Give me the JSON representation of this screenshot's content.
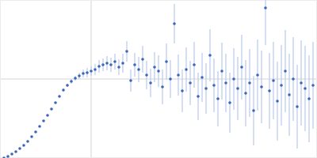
{
  "chart_data": {
    "type": "scatter",
    "x": [
      5,
      10,
      15,
      20,
      25,
      30,
      35,
      40,
      45,
      50,
      55,
      60,
      65,
      70,
      75,
      80,
      85,
      90,
      95,
      100,
      105,
      110,
      115,
      120,
      125,
      130,
      135,
      140,
      145,
      150,
      155,
      160,
      165,
      170,
      175,
      180,
      185,
      190,
      195,
      200,
      205,
      210,
      215,
      220,
      225,
      230,
      235,
      240,
      245,
      250,
      255,
      260,
      265,
      270,
      275,
      280,
      285,
      290,
      295,
      300,
      305,
      310,
      315,
      320,
      325,
      330,
      335,
      340,
      345,
      350,
      355,
      360,
      365,
      370,
      375,
      380,
      385,
      390,
      395
    ],
    "values": [
      0,
      2,
      5,
      8,
      12,
      16,
      21,
      27,
      33,
      40,
      47,
      54,
      62,
      70,
      78,
      86,
      92,
      97,
      101,
      104,
      107,
      108,
      110,
      112,
      116,
      118,
      120,
      118,
      122,
      115,
      120,
      135,
      98,
      118,
      112,
      125,
      105,
      95,
      115,
      110,
      90,
      122,
      100,
      170,
      105,
      85,
      112,
      95,
      118,
      78,
      102,
      88,
      130,
      92,
      75,
      110,
      95,
      70,
      100,
      88,
      115,
      82,
      95,
      60,
      105,
      90,
      190,
      85,
      98,
      72,
      92,
      110,
      80,
      100,
      65,
      95,
      88,
      75,
      92
    ],
    "errors": [
      0.5,
      0.5,
      0.5,
      0.5,
      0.5,
      0.5,
      0.5,
      0.5,
      0.5,
      0.5,
      0.5,
      0.5,
      0.5,
      0.5,
      0.5,
      2,
      2,
      3,
      3,
      4,
      5,
      6,
      6,
      7,
      8,
      8,
      9,
      9,
      10,
      10,
      12,
      13,
      14,
      15,
      16,
      17,
      18,
      18,
      19,
      20,
      22,
      23,
      24,
      25,
      26,
      27,
      28,
      28,
      29,
      30,
      31,
      32,
      33,
      34,
      35,
      36,
      37,
      38,
      39,
      40,
      41,
      42,
      43,
      44,
      45,
      46,
      47,
      48,
      49,
      50,
      51,
      52,
      52,
      53,
      53,
      54,
      54,
      55,
      55
    ],
    "color": "#3a65b8",
    "marker": "circle",
    "xlim": [
      0,
      400
    ],
    "ylim": [
      0,
      200
    ],
    "xticks": [
      115
    ],
    "yticks": [
      100
    ],
    "grid": true,
    "tick_labels": false
  }
}
